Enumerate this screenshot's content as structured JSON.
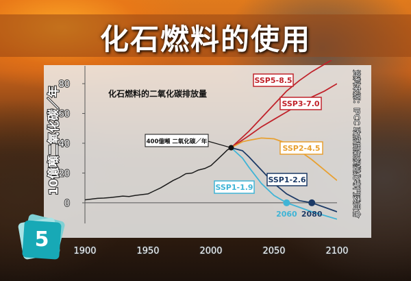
{
  "title": "化石燃料的使用",
  "badge_number": "5",
  "chart_data": {
    "type": "line",
    "title": "化石燃料的二氧化碳排放量",
    "ylabel": "10億噸二氧化碳／年",
    "source": "資料來源：IPCC 政府間氣候變化專門委員會",
    "xlim": [
      1900,
      2100
    ],
    "ylim": [
      -12,
      92
    ],
    "xticks": [
      1900,
      1950,
      2000,
      2050,
      2100
    ],
    "yticks": [
      0,
      20,
      40,
      60,
      80
    ],
    "annotation": {
      "text": "400億噸 二氧化碳／年",
      "x": 2016,
      "y": 37
    },
    "historical": {
      "color": "#1a1a1a",
      "x": [
        1900,
        1905,
        1910,
        1915,
        1920,
        1925,
        1930,
        1935,
        1940,
        1945,
        1950,
        1955,
        1960,
        1965,
        1970,
        1975,
        1980,
        1985,
        1990,
        1995,
        2000,
        2005,
        2010,
        2013,
        2016
      ],
      "y": [
        2,
        2.5,
        3,
        3.2,
        3.5,
        4,
        4.5,
        4.2,
        5,
        5.5,
        6,
        8,
        10,
        12.5,
        15,
        17,
        19.5,
        20,
        22,
        23,
        25,
        29,
        33,
        35.5,
        37
      ]
    },
    "series": [
      {
        "name": "SSP5-8.5",
        "color": "#c0222a",
        "label_border": "#c0222a",
        "x": [
          2016,
          2030,
          2040,
          2050,
          2060,
          2070,
          2080,
          2090,
          2100
        ],
        "y": [
          37,
          48,
          57,
          66,
          75,
          82,
          88,
          93,
          98
        ]
      },
      {
        "name": "SSP3-7.0",
        "color": "#c0222a",
        "label_border": "#c0222a",
        "x": [
          2016,
          2030,
          2040,
          2050,
          2060,
          2070,
          2080,
          2090,
          2100
        ],
        "y": [
          37,
          45,
          51,
          56,
          61,
          66,
          71,
          75,
          80
        ]
      },
      {
        "name": "SSP2-4.5",
        "color": "#e8a030",
        "label_border": "#e8a030",
        "x": [
          2016,
          2025,
          2030,
          2040,
          2050,
          2060,
          2070,
          2080,
          2090,
          2100
        ],
        "y": [
          37,
          41,
          42,
          43.5,
          43,
          40,
          35,
          29,
          22,
          15
        ]
      },
      {
        "name": "SSP1-2.6",
        "color": "#1c3a66",
        "label_border": "#1c3a66",
        "x": [
          2016,
          2025,
          2030,
          2040,
          2050,
          2060,
          2070,
          2080,
          2090,
          2100
        ],
        "y": [
          37,
          35,
          31,
          22,
          13,
          6,
          1.5,
          0,
          -3,
          -6
        ]
      },
      {
        "name": "SSP1-1.9",
        "color": "#3fb4d6",
        "label_border": "#3fb4d6",
        "x": [
          2016,
          2025,
          2030,
          2040,
          2050,
          2060,
          2070,
          2080,
          2090,
          2100
        ],
        "y": [
          37,
          30,
          24,
          13,
          5,
          0,
          -3,
          -6,
          -8.5,
          -11
        ]
      }
    ],
    "markers": [
      {
        "label": "2060",
        "x": 2060,
        "y": 0,
        "color": "#3fb4d6"
      },
      {
        "label": "2080",
        "x": 2080,
        "y": 0,
        "color": "#1c3a66"
      }
    ]
  }
}
